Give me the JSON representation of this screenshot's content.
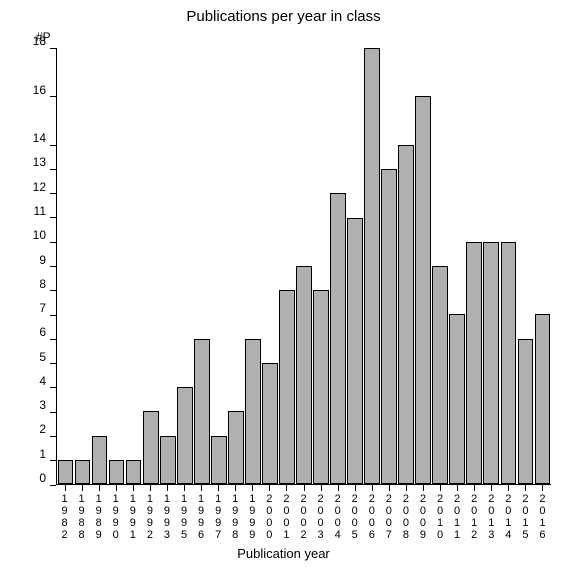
{
  "chart": {
    "type": "bar",
    "title": "Publications per year in class",
    "title_fontsize": 15,
    "xlabel": "Publication year",
    "ylabel": "#P",
    "label_fontsize": 13,
    "tick_fontsize": 12,
    "background_color": "#ffffff",
    "bar_color": "#b0b0b0",
    "bar_border_color": "#000000",
    "axis_color": "#000000",
    "text_color": "#000000",
    "bar_width": 0.92,
    "ylim": [
      0,
      18
    ],
    "ytick_step": 1,
    "yticks": [
      0,
      1,
      2,
      3,
      4,
      5,
      6,
      7,
      8,
      9,
      10,
      11,
      12,
      13,
      14,
      16,
      18
    ],
    "categories": [
      "1982",
      "1988",
      "1989",
      "1990",
      "1991",
      "1992",
      "1993",
      "1995",
      "1996",
      "1997",
      "1998",
      "1999",
      "2000",
      "2001",
      "2002",
      "2003",
      "2004",
      "2005",
      "2006",
      "2007",
      "2008",
      "2009",
      "2010",
      "2011",
      "2012",
      "2013",
      "2014",
      "2015",
      "2016"
    ],
    "values": [
      1,
      1,
      2,
      1,
      1,
      3,
      2,
      4,
      6,
      2,
      3,
      6,
      5,
      8,
      9,
      8,
      12,
      11,
      18,
      13,
      14,
      16,
      9,
      7,
      10,
      10,
      10,
      6,
      7
    ]
  }
}
